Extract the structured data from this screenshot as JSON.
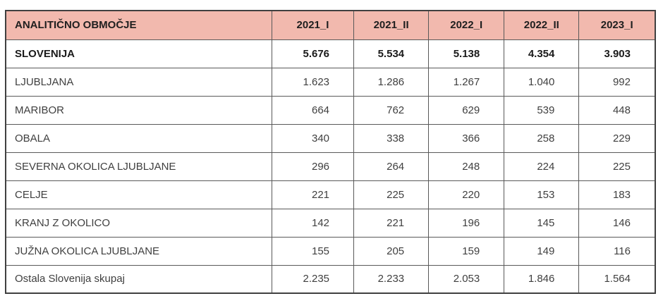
{
  "colors": {
    "header_bg": "#f2b9ae",
    "grid_border": "#595959",
    "outer_border": "#404040",
    "header_text": "#1f1f1f",
    "body_text": "#3f3f3f",
    "bold_text": "#1a1a1a",
    "page_bg": "#ffffff"
  },
  "chart_data": {
    "type": "table",
    "title": "",
    "header": {
      "area_label": "ANALITIČNO OBMOČJE",
      "period_columns": [
        "2021_I",
        "2021_II",
        "2022_I",
        "2022_II",
        "2023_I"
      ]
    },
    "rows": [
      {
        "label": "SLOVENIJA",
        "bold": true,
        "values": [
          "5.676",
          "5.534",
          "5.138",
          "4.354",
          "3.903"
        ]
      },
      {
        "label": "LJUBLJANA",
        "bold": false,
        "values": [
          "1.623",
          "1.286",
          "1.267",
          "1.040",
          "992"
        ]
      },
      {
        "label": "MARIBOR",
        "bold": false,
        "values": [
          "664",
          "762",
          "629",
          "539",
          "448"
        ]
      },
      {
        "label": "OBALA",
        "bold": false,
        "values": [
          "340",
          "338",
          "366",
          "258",
          "229"
        ]
      },
      {
        "label": "SEVERNA OKOLICA LJUBLJANE",
        "bold": false,
        "values": [
          "296",
          "264",
          "248",
          "224",
          "225"
        ]
      },
      {
        "label": "CELJE",
        "bold": false,
        "values": [
          "221",
          "225",
          "220",
          "153",
          "183"
        ]
      },
      {
        "label": "KRANJ Z OKOLICO",
        "bold": false,
        "values": [
          "142",
          "221",
          "196",
          "145",
          "146"
        ]
      },
      {
        "label": "JUŽNA OKOLICA LJUBLJANE",
        "bold": false,
        "values": [
          "155",
          "205",
          "159",
          "149",
          "116"
        ]
      },
      {
        "label": "Ostala Slovenija skupaj",
        "bold": false,
        "values": [
          "2.235",
          "2.233",
          "2.053",
          "1.846",
          "1.564"
        ]
      }
    ]
  }
}
